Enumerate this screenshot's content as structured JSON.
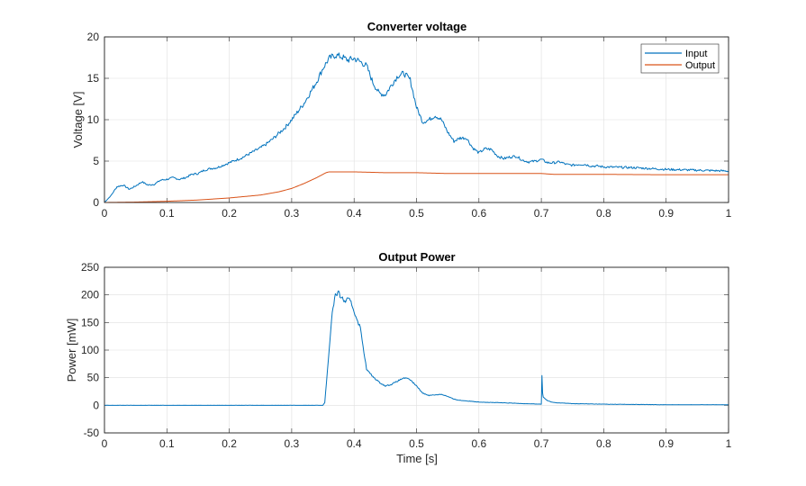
{
  "chart_data": [
    {
      "type": "line",
      "title": "Converter voltage",
      "xlabel": "",
      "ylabel": "Voltage [V]",
      "xlim": [
        0,
        1
      ],
      "ylim": [
        0,
        20
      ],
      "xticks": [
        "0",
        "0.1",
        "0.2",
        "0.3",
        "0.4",
        "0.5",
        "0.6",
        "0.7",
        "0.8",
        "0.9",
        "1"
      ],
      "yticks": [
        "0",
        "5",
        "10",
        "15",
        "20"
      ],
      "grid": true,
      "legend_location": "top-right",
      "series": [
        {
          "name": "Input",
          "color": "#0072BD",
          "x": [
            0,
            0.01,
            0.02,
            0.03,
            0.04,
            0.05,
            0.06,
            0.07,
            0.08,
            0.09,
            0.1,
            0.11,
            0.12,
            0.13,
            0.14,
            0.15,
            0.16,
            0.17,
            0.18,
            0.19,
            0.2,
            0.21,
            0.22,
            0.23,
            0.24,
            0.25,
            0.26,
            0.27,
            0.28,
            0.29,
            0.3,
            0.31,
            0.32,
            0.33,
            0.34,
            0.35,
            0.36,
            0.37,
            0.38,
            0.39,
            0.4,
            0.41,
            0.42,
            0.43,
            0.44,
            0.45,
            0.46,
            0.47,
            0.48,
            0.49,
            0.5,
            0.51,
            0.52,
            0.53,
            0.54,
            0.55,
            0.56,
            0.57,
            0.58,
            0.59,
            0.6,
            0.61,
            0.62,
            0.63,
            0.64,
            0.65,
            0.66,
            0.67,
            0.68,
            0.69,
            0.7,
            0.71,
            0.72,
            0.73,
            0.74,
            0.75,
            0.76,
            0.77,
            0.78,
            0.79,
            0.8,
            0.85,
            0.9,
            0.95,
            1.0
          ],
          "y": [
            0,
            0.8,
            1.9,
            2.1,
            1.6,
            2.0,
            2.5,
            2.1,
            2.2,
            2.7,
            2.8,
            3.0,
            2.8,
            3.0,
            3.4,
            3.5,
            3.9,
            4.1,
            4.2,
            4.5,
            4.8,
            5.1,
            5.4,
            5.8,
            6.2,
            6.6,
            7.1,
            7.7,
            8.4,
            9.1,
            10.0,
            11.0,
            12.0,
            13.3,
            14.6,
            16.2,
            17.4,
            17.8,
            17.6,
            17.2,
            17.4,
            17.0,
            16.5,
            14.5,
            13.2,
            13.0,
            14.2,
            15.3,
            15.6,
            14.8,
            11.5,
            9.7,
            10.0,
            10.5,
            10.0,
            8.5,
            7.4,
            7.8,
            7.8,
            6.6,
            6.0,
            6.5,
            6.4,
            5.6,
            5.3,
            5.5,
            5.6,
            5.1,
            4.9,
            5.0,
            5.2,
            4.8,
            4.8,
            4.9,
            4.6,
            4.5,
            4.6,
            4.6,
            4.4,
            4.4,
            4.3,
            4.2,
            4.0,
            3.9,
            3.8
          ]
        },
        {
          "name": "Output",
          "color": "#D95319",
          "x": [
            0,
            0.05,
            0.1,
            0.15,
            0.2,
            0.25,
            0.28,
            0.3,
            0.32,
            0.34,
            0.355,
            0.36,
            0.4,
            0.45,
            0.5,
            0.55,
            0.6,
            0.65,
            0.7,
            0.72,
            0.8,
            0.9,
            1.0
          ],
          "y": [
            0,
            0.05,
            0.15,
            0.3,
            0.55,
            0.9,
            1.3,
            1.7,
            2.3,
            3.0,
            3.6,
            3.7,
            3.7,
            3.6,
            3.6,
            3.5,
            3.5,
            3.5,
            3.5,
            3.4,
            3.4,
            3.35,
            3.35
          ]
        }
      ]
    },
    {
      "type": "line",
      "title": "Output Power",
      "xlabel": "Time [s]",
      "ylabel": "Power [mW]",
      "xlim": [
        0,
        1
      ],
      "ylim": [
        -50,
        250
      ],
      "xticks": [
        "0",
        "0.1",
        "0.2",
        "0.3",
        "0.4",
        "0.5",
        "0.6",
        "0.7",
        "0.8",
        "0.9",
        "1"
      ],
      "yticks": [
        "-50",
        "0",
        "50",
        "100",
        "150",
        "200",
        "250"
      ],
      "grid": true,
      "series": [
        {
          "color": "#0072BD",
          "x": [
            0,
            0.1,
            0.2,
            0.3,
            0.35,
            0.353,
            0.36,
            0.365,
            0.37,
            0.375,
            0.38,
            0.385,
            0.39,
            0.395,
            0.4,
            0.41,
            0.42,
            0.43,
            0.44,
            0.45,
            0.46,
            0.47,
            0.48,
            0.49,
            0.5,
            0.51,
            0.52,
            0.53,
            0.54,
            0.55,
            0.56,
            0.57,
            0.58,
            0.6,
            0.65,
            0.7,
            0.701,
            0.702,
            0.703,
            0.71,
            0.72,
            0.75,
            0.8,
            0.9,
            1.0
          ],
          "y": [
            0,
            0,
            0,
            0,
            0,
            5,
            100,
            170,
            200,
            203,
            195,
            188,
            192,
            187,
            170,
            140,
            65,
            52,
            42,
            35,
            38,
            44,
            50,
            46,
            35,
            22,
            18,
            19,
            20,
            16,
            11,
            9,
            8,
            6,
            4,
            2,
            55,
            22,
            15,
            8,
            5,
            3,
            2,
            1,
            1
          ]
        }
      ]
    }
  ]
}
